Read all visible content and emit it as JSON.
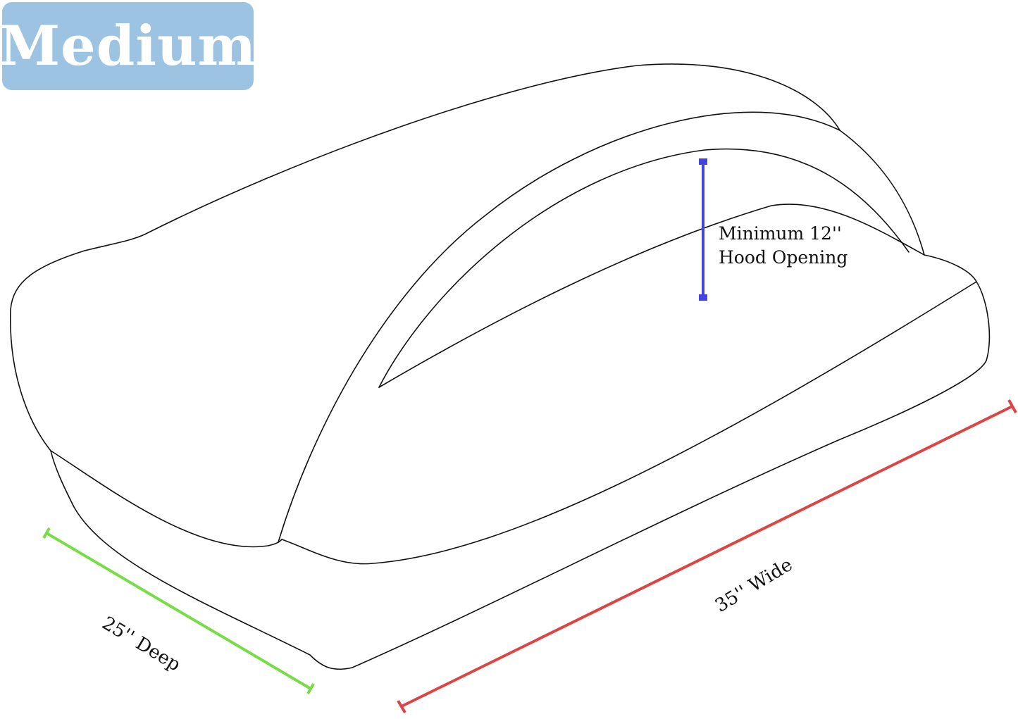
{
  "badge": {
    "label": "Medium",
    "color": "#9dc3e2"
  },
  "dimensions": {
    "hood": {
      "line1": "Minimum 12''",
      "line2": "Hood Opening",
      "color": "#4444dd"
    },
    "depth": {
      "label": "25'' Deep",
      "color": "#77dd44"
    },
    "width": {
      "label": "35'' Wide",
      "color": "#dd4444"
    }
  }
}
